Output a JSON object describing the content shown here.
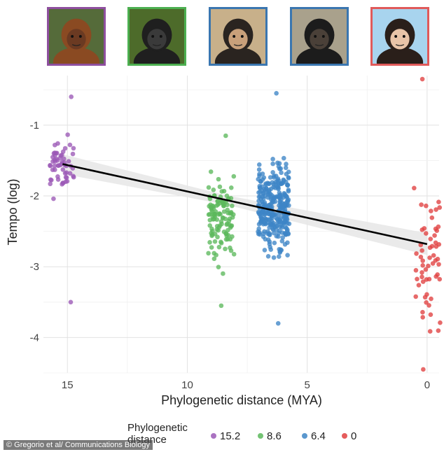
{
  "credit": "© Gregorio et al/ Communications Biology",
  "photos": [
    {
      "icon": "orangutan-photo-icon",
      "border": "#8e4f9e",
      "fur": "#8a4a22",
      "bg": "#556b3a",
      "face": "#6b3a22"
    },
    {
      "icon": "gorilla-photo-icon",
      "border": "#4caf50",
      "fur": "#1f1f1f",
      "bg": "#4d6b2a",
      "face": "#3a3a3a"
    },
    {
      "icon": "chimpanzee-photo-icon",
      "border": "#3a76b0",
      "fur": "#2a2420",
      "bg": "#c8b08a",
      "face": "#c9a07a"
    },
    {
      "icon": "bonobo-photo-icon",
      "border": "#3a76b0",
      "fur": "#1c1c1c",
      "bg": "#a9a18c",
      "face": "#4a4038"
    },
    {
      "icon": "human-photo-icon",
      "border": "#e05a5a",
      "fur": "#2a1f1a",
      "bg": "#a8d4ee",
      "face": "#e8c4a8"
    }
  ],
  "chart_data": {
    "type": "scatter",
    "xlabel": "Phylogenetic distance (MYA)",
    "ylabel": "Tempo (log)",
    "xlim": [
      16,
      -0.5
    ],
    "ylim": [
      -4.5,
      -0.3
    ],
    "x_reversed": true,
    "x_ticks": [
      15,
      10,
      5,
      0
    ],
    "y_ticks": [
      -1,
      -2,
      -3,
      -4
    ],
    "grid": true,
    "legend_title": "Phylogenetic distance",
    "legend_position": "bottom",
    "series": [
      {
        "name": "15.2",
        "x": 15.2,
        "color": "#9b59b6",
        "count": 60,
        "y_range": [
          -3.5,
          -0.6
        ],
        "center": -1.55,
        "spread": 0.35
      },
      {
        "name": "8.6",
        "x": 8.6,
        "color": "#5cb85c",
        "count": 120,
        "y_range": [
          -3.55,
          -1.15
        ],
        "center": -2.3,
        "spread": 0.5
      },
      {
        "name": "6.4",
        "x": 6.4,
        "color": "#3d85c6",
        "count": 320,
        "y_range": [
          -3.8,
          -0.55
        ],
        "center": -2.2,
        "spread": 0.55
      },
      {
        "name": "0",
        "x": 0,
        "color": "#e04040",
        "count": 60,
        "y_range": [
          -4.45,
          -0.35
        ],
        "center": -2.9,
        "spread": 0.85
      }
    ],
    "regression": {
      "x": [
        15.2,
        0
      ],
      "y": [
        -1.55,
        -2.68
      ],
      "ci_half_width": [
        0.12,
        0.2
      ],
      "color": "#000000",
      "band_color": "#e6e6e6"
    }
  }
}
